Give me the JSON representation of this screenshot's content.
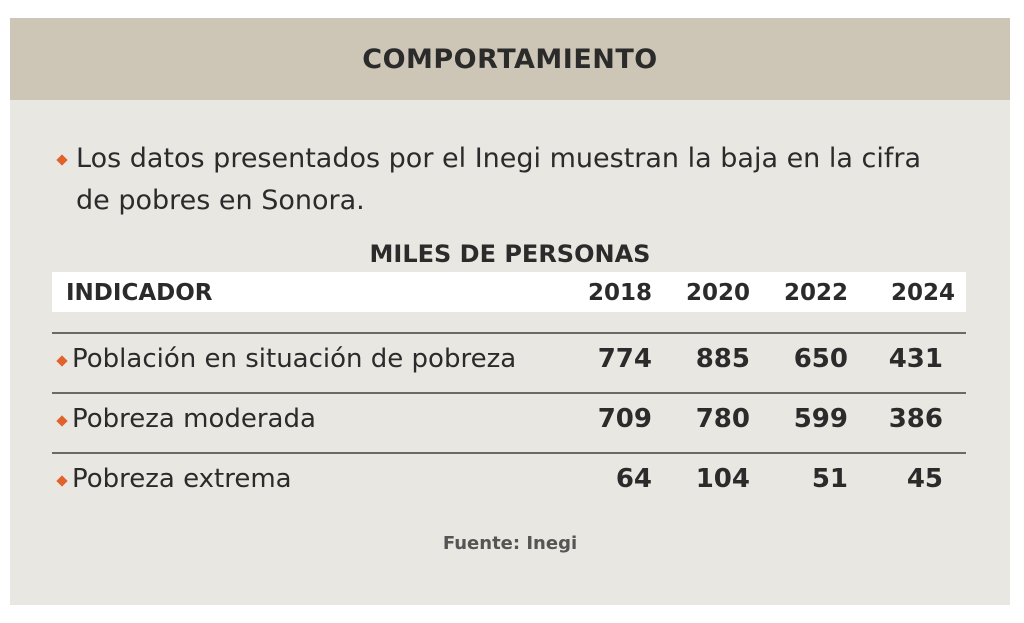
{
  "header": {
    "title": "COMPORTAMIENTO"
  },
  "note": "Los datos presentados por el Inegi muestran la baja en la cifra de pobres en Sonora.",
  "table": {
    "caption": "MILES DE PERSONAS",
    "columns": [
      "INDICADOR",
      "2018",
      "2020",
      "2022",
      "2024"
    ],
    "rows": [
      [
        "Población en situación de pobreza",
        774,
        885,
        650,
        431
      ],
      [
        "Pobreza moderada",
        709,
        780,
        599,
        386
      ],
      [
        "Pobreza extrema",
        64,
        104,
        51,
        45
      ]
    ]
  },
  "source": "Fuente: Inegi"
}
